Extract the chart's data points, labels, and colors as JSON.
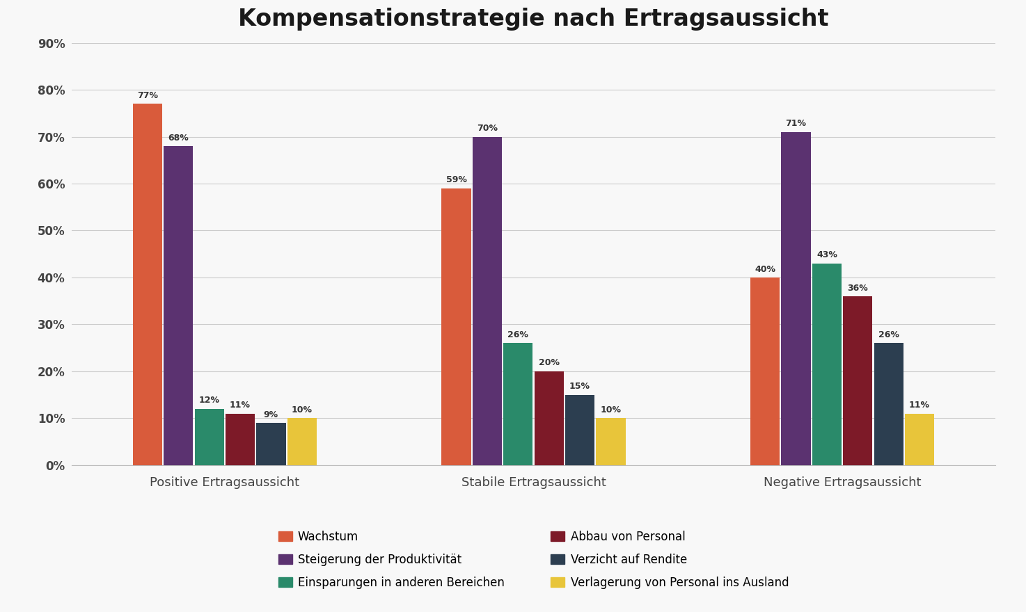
{
  "title": "Kompensationstrategie nach Ertragsaussicht",
  "categories": [
    "Positive Ertragsaussicht",
    "Stabile Ertragsaussicht",
    "Negative Ertragsaussicht"
  ],
  "series": [
    {
      "name": "Wachstum",
      "color": "#D95B3B",
      "values": [
        77,
        59,
        40
      ]
    },
    {
      "name": "Steigerung der Produktivität",
      "color": "#5B3270",
      "values": [
        68,
        70,
        71
      ]
    },
    {
      "name": "Einsparungen in anderen Bereichen",
      "color": "#2A8A6A",
      "values": [
        12,
        26,
        43
      ]
    },
    {
      "name": "Abbau von Personal",
      "color": "#7D1A28",
      "values": [
        11,
        20,
        36
      ]
    },
    {
      "name": "Verzicht auf Rendite",
      "color": "#2C3E50",
      "values": [
        9,
        15,
        26
      ]
    },
    {
      "name": "Verlagerung von Personal ins Ausland",
      "color": "#E8C53A",
      "values": [
        10,
        10,
        11
      ]
    }
  ],
  "ylim": [
    0,
    90
  ],
  "yticks": [
    0,
    10,
    20,
    30,
    40,
    50,
    60,
    70,
    80,
    90
  ],
  "ytick_labels": [
    "0%",
    "10%",
    "20%",
    "30%",
    "40%",
    "50%",
    "60%",
    "70%",
    "80%",
    "90%"
  ],
  "background_color": "#F8F8F8",
  "title_fontsize": 24,
  "bar_width": 0.1,
  "legend_ncol": 2,
  "grid_color": "#CCCCCC"
}
